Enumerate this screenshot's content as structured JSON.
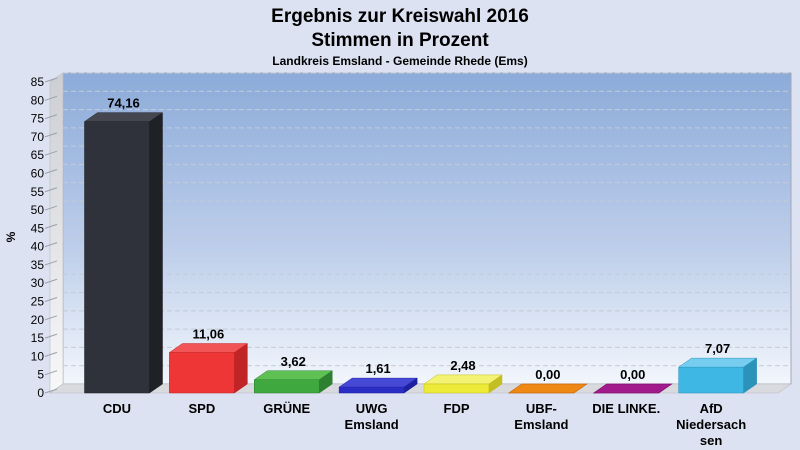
{
  "page": {
    "background": "#dce2f2"
  },
  "header": {
    "title_line1": "Ergebnis zur Kreiswahl 2016",
    "title_line2": "Stimmen in Prozent",
    "subtitle": "Landkreis Emsland - Gemeinde Rhede (Ems)"
  },
  "chart_data": {
    "type": "bar",
    "style": "3d-bars, vertical",
    "title": "Ergebnis zur Kreiswahl 2016",
    "subtitle2": "Stimmen in Prozent",
    "subtitle3": "Landkreis Emsland - Gemeinde Rhede (Ems)",
    "xlabel": "",
    "ylabel": "%",
    "ylim": [
      0,
      85
    ],
    "ytick_step": 5,
    "grid": "horizontal dashed gridlines every 5",
    "legend_position": "none",
    "categories": [
      "CDU",
      "SPD",
      "GRÜNE",
      "UWG Emsland",
      "FDP",
      "UBF-Emsland",
      "DIE LINKE.",
      "AfD Niedersachsen"
    ],
    "category_label_lines": [
      [
        "CDU"
      ],
      [
        "SPD"
      ],
      [
        "GRÜNE"
      ],
      [
        "UWG",
        "Emsland"
      ],
      [
        "FDP"
      ],
      [
        "UBF-",
        "Emsland"
      ],
      [
        "DIE LINKE."
      ],
      [
        "AfD",
        "Niedersach",
        "sen"
      ]
    ],
    "values": [
      74.16,
      11.06,
      3.62,
      1.61,
      2.48,
      0.0,
      0.0,
      7.07
    ],
    "value_labels": [
      "74,16",
      "11,06",
      "3,62",
      "1,61",
      "2,48",
      "0,00",
      "0,00",
      "7,07"
    ],
    "bar_colors": [
      {
        "name": "dark-gray",
        "front": "#2f323a",
        "top": "#44474f",
        "side": "#1f2127"
      },
      {
        "name": "red",
        "front": "#ee3636",
        "top": "#f25555",
        "side": "#c12424"
      },
      {
        "name": "green",
        "front": "#3fa83f",
        "top": "#5fc054",
        "side": "#2c8030"
      },
      {
        "name": "blue",
        "front": "#2a2ec6",
        "top": "#4649d6",
        "side": "#1d20a0"
      },
      {
        "name": "yellow",
        "front": "#eeea38",
        "top": "#f4f272",
        "side": "#c2be23"
      },
      {
        "name": "orange",
        "front": "#f08816",
        "top": "#f08816",
        "side": "#c66a0a"
      },
      {
        "name": "magenta",
        "front": "#a21b8c",
        "top": "#a21b8c",
        "side": "#7d1069"
      },
      {
        "name": "light-blue",
        "front": "#3fb7e4",
        "top": "#76cdf0",
        "side": "#2b93ba"
      }
    ],
    "plot_colors": {
      "plot_top": "#8cabd9",
      "plot_bottom": "#f2f6fc",
      "wall_top": "#cdced3",
      "wall_bottom": "#f8f8f9",
      "floor": "#d9dade",
      "gridline": "#c6cad4",
      "border": "#a3a8b5",
      "text": "#000000"
    }
  }
}
